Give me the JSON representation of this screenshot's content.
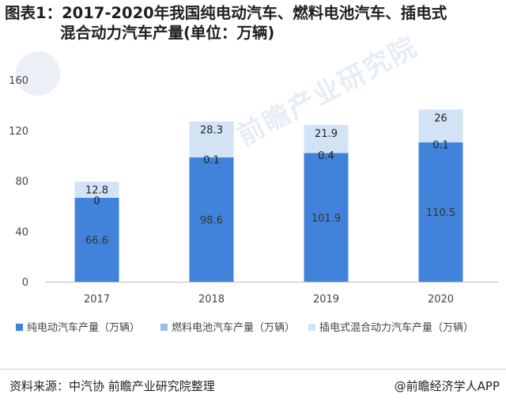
{
  "title": {
    "line1": "图表1：2017-2020年我国纯电动汽车、燃料电池汽车、插电式",
    "line2": "混合动力汽车产量(单位：万辆)"
  },
  "watermark": "前瞻产业研究院",
  "footer": {
    "source": "资料来源：中汽协 前瞻产业研究院整理",
    "brand": "@前瞻经济学人APP"
  },
  "colors": {
    "bev": "#4183da",
    "fcv": "#9cbdea",
    "phev": "#d2e3f6"
  },
  "chart_data": {
    "type": "bar",
    "stacked": true,
    "categories": [
      "2017",
      "2018",
      "2019",
      "2020"
    ],
    "series": [
      {
        "name": "纯电动汽车产量（万辆）",
        "values": [
          66.6,
          98.6,
          101.9,
          110.5
        ],
        "labels": [
          "66.6",
          "98.6",
          "101.9",
          "110.5"
        ]
      },
      {
        "name": "燃料电池汽车产量（万辆）",
        "values": [
          0,
          0.1,
          0.4,
          0.1
        ],
        "labels": [
          "0",
          "0.1",
          "0.4",
          "0.1"
        ]
      },
      {
        "name": "插电式混合动力汽车产量（万辆）",
        "values": [
          12.8,
          28.3,
          21.9,
          26
        ],
        "labels": [
          "12.8",
          "28.3",
          "21.9",
          "26"
        ]
      }
    ],
    "yticks": [
      "0",
      "40",
      "80",
      "120",
      "160"
    ],
    "ylim": [
      0,
      160
    ],
    "grid": false,
    "legend_position": "bottom"
  }
}
